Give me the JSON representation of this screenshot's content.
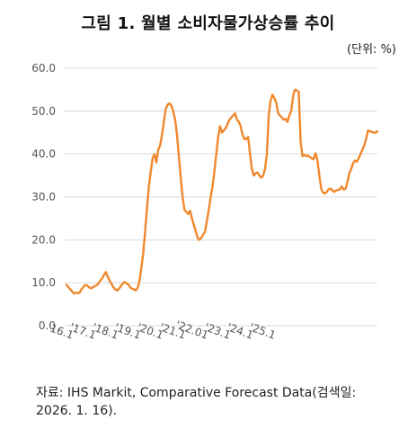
{
  "title": "그림 1. 월별 소비자물가상승률 추이",
  "unit_label": "(단위: %)",
  "source_line1": "자료: IHS Markit, Comparative Forecast Data(검색일:",
  "source_line2": "2026. 1. 16).",
  "chart_data": {
    "type": "line",
    "title": "그림 1. 월별 소비자물가상승률 추이",
    "xlabel": "",
    "ylabel": "",
    "ylim": [
      0,
      60
    ],
    "yticks": [
      "0.0",
      "10.0",
      "20.0",
      "30.0",
      "40.0",
      "50.0",
      "60.0"
    ],
    "grid": "horizontal",
    "color": "#f0882e",
    "x_start": "2016-01",
    "xtick_labels": [
      {
        "label": "'16.1",
        "x": "2016-01"
      },
      {
        "label": "'17.1",
        "x": "2017-01"
      },
      {
        "label": "'18.1",
        "x": "2018-01"
      },
      {
        "label": "'19.1",
        "x": "2019-01"
      },
      {
        "label": "'20.1",
        "x": "2020-01"
      },
      {
        "label": "'21.1",
        "x": "2021-01"
      },
      {
        "label": "'22.01",
        "x": "2022-01"
      },
      {
        "label": "'23.1",
        "x": "2023-01"
      },
      {
        "label": "'24.1",
        "x": "2024-01"
      },
      {
        "label": "'25.1",
        "x": "2025-01"
      }
    ],
    "series": [
      {
        "values": [
          9.5,
          9.0,
          8.5,
          8.0,
          7.5,
          7.7,
          7.6,
          7.7,
          8.5,
          9.0,
          9.5,
          9.4,
          9.0,
          8.7,
          8.9,
          9.2,
          9.4,
          9.8,
          10.5,
          11.0,
          11.8,
          12.5,
          11.5,
          10.5,
          9.8,
          9.0,
          8.5,
          8.2,
          8.6,
          9.2,
          9.8,
          10.2,
          9.9,
          9.6,
          9.0,
          8.6,
          8.5,
          8.2,
          8.8,
          10.5,
          13.5,
          17.0,
          22.0,
          27.5,
          32.5,
          36.0,
          39.0,
          40.0,
          38.0,
          41.0,
          42.0,
          44.5,
          47.5,
          50.5,
          51.5,
          51.8,
          51.3,
          50.0,
          48.0,
          44.5,
          39.5,
          34.5,
          30.0,
          27.0,
          26.5,
          26.0,
          26.8,
          25.0,
          23.5,
          22.0,
          20.5,
          20.0,
          20.5,
          21.2,
          22.0,
          24.5,
          27.0,
          30.0,
          32.5,
          36.0,
          40.0,
          44.0,
          46.5,
          45.0,
          45.5,
          46.0,
          47.0,
          48.0,
          48.5,
          49.0,
          49.5,
          48.0,
          47.5,
          46.5,
          44.5,
          43.5,
          43.5,
          44.0,
          40.0,
          36.5,
          35.0,
          35.5,
          35.7,
          35.0,
          34.5,
          35.0,
          36.5,
          40.0,
          49.0,
          52.5,
          53.8,
          53.0,
          52.0,
          49.5,
          49.0,
          48.5,
          48.0,
          48.2,
          47.5,
          49.0,
          50.0,
          53.5,
          55.0,
          54.8,
          54.5,
          43.0,
          39.5,
          39.8,
          39.5,
          39.6,
          39.3,
          39.0,
          38.8,
          40.2,
          38.5,
          35.0,
          32.0,
          31.0,
          30.8,
          31.2,
          31.8,
          32.0,
          31.5,
          31.2,
          31.5,
          31.6,
          31.8,
          32.5,
          31.7,
          31.9,
          33.5,
          35.5,
          36.5,
          37.8,
          38.5,
          38.2,
          39.0,
          40.0,
          41.0,
          42.0,
          43.5,
          45.5,
          45.3,
          45.2,
          45.0,
          45.0,
          45.3
        ]
      }
    ]
  }
}
